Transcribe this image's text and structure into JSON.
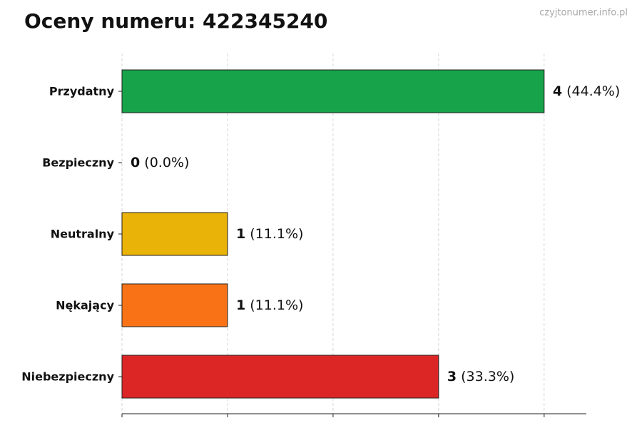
{
  "chart_data": {
    "type": "barh",
    "title": "Oceny numeru: 422345240",
    "watermark": "czyjtonumer.info.pl",
    "categories": [
      "Przydatny",
      "Bezpieczny",
      "Neutralny",
      "Nękający",
      "Niebezpieczny"
    ],
    "values": [
      4,
      0,
      1,
      1,
      3
    ],
    "percent_labels": [
      "(44.4%)",
      "(0.0%)",
      "(11.1%)",
      "(11.1%)",
      "(33.3%)"
    ],
    "colors": [
      "#16a34a",
      "#2563eb",
      "#eab308",
      "#f97316",
      "#dc2626"
    ],
    "xlim": [
      0,
      4.4
    ],
    "xticks": [
      0,
      1,
      2,
      3,
      4
    ],
    "grid": true
  }
}
